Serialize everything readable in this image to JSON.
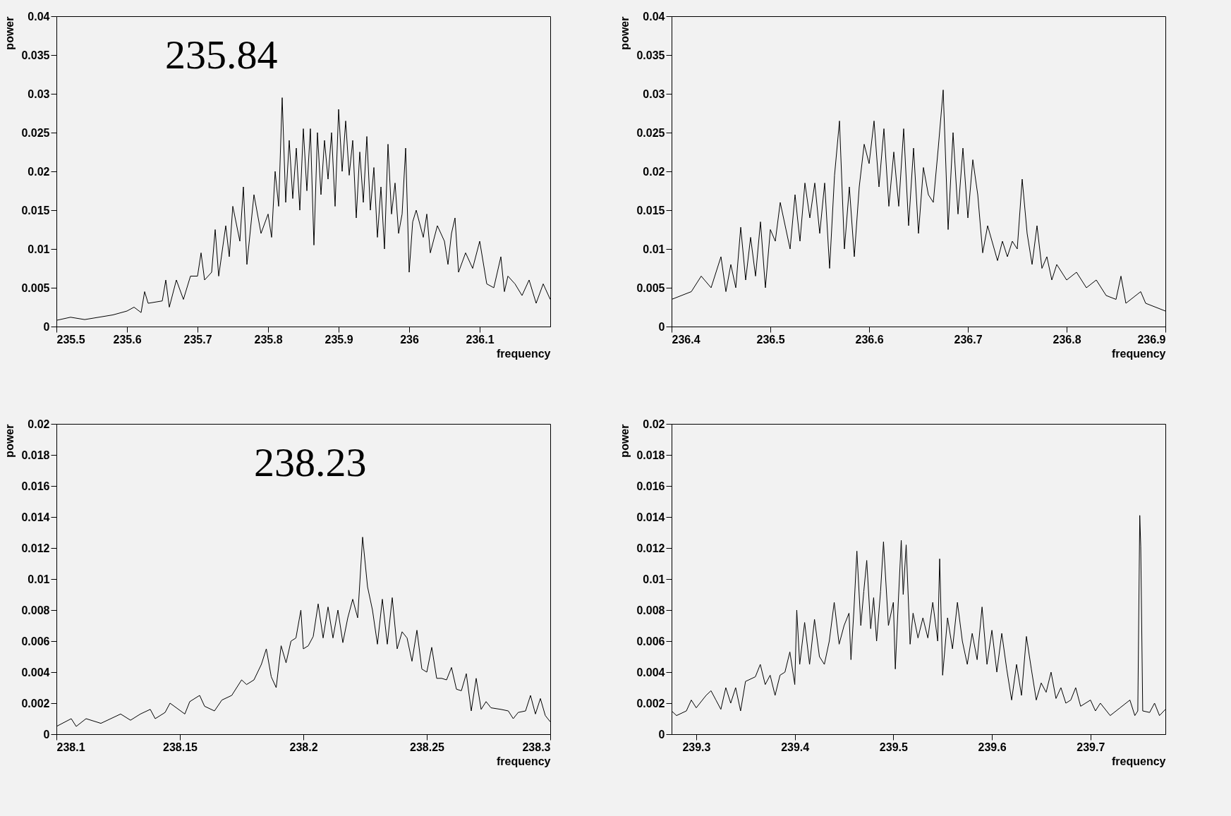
{
  "chart_data": [
    {
      "type": "line",
      "xlabel": "frequency",
      "ylabel": "power",
      "annotations": [
        "235.84"
      ],
      "xlim": [
        235.5,
        236.2
      ],
      "xticks": [
        235.5,
        235.6,
        235.7,
        235.8,
        235.9,
        236,
        236.1
      ],
      "ylim": [
        0,
        0.04
      ],
      "yticks": [
        0,
        0.005,
        0.01,
        0.015,
        0.02,
        0.025,
        0.03,
        0.035,
        0.04
      ],
      "series": [
        {
          "color": "#000000",
          "x": [
            235.5,
            235.52,
            235.54,
            235.56,
            235.58,
            235.6,
            235.61,
            235.62,
            235.625,
            235.63,
            235.65,
            235.655,
            235.66,
            235.67,
            235.68,
            235.69,
            235.7,
            235.705,
            235.71,
            235.72,
            235.725,
            235.73,
            235.74,
            235.745,
            235.75,
            235.76,
            235.765,
            235.77,
            235.78,
            235.79,
            235.8,
            235.805,
            235.81,
            235.815,
            235.82,
            235.825,
            235.83,
            235.835,
            235.84,
            235.845,
            235.85,
            235.855,
            235.86,
            235.865,
            235.87,
            235.875,
            235.88,
            235.885,
            235.89,
            235.895,
            235.9,
            235.905,
            235.91,
            235.915,
            235.92,
            235.925,
            235.93,
            235.935,
            235.94,
            235.945,
            235.95,
            235.955,
            235.96,
            235.965,
            235.97,
            235.975,
            235.98,
            235.985,
            235.99,
            235.995,
            236,
            236.005,
            236.01,
            236.02,
            236.025,
            236.03,
            236.04,
            236.05,
            236.055,
            236.06,
            236.065,
            236.07,
            236.08,
            236.09,
            236.1,
            236.11,
            236.12,
            236.13,
            236.135,
            236.14,
            236.15,
            236.16,
            236.17,
            236.18,
            236.19,
            236.2
          ],
          "values": [
            0.0008,
            0.0012,
            0.0009,
            0.0012,
            0.0015,
            0.002,
            0.0025,
            0.0018,
            0.0045,
            0.003,
            0.0033,
            0.006,
            0.0025,
            0.006,
            0.0035,
            0.0065,
            0.0065,
            0.0095,
            0.006,
            0.007,
            0.0125,
            0.0065,
            0.013,
            0.009,
            0.0155,
            0.011,
            0.018,
            0.008,
            0.017,
            0.012,
            0.0145,
            0.0115,
            0.02,
            0.0155,
            0.0295,
            0.016,
            0.024,
            0.0165,
            0.023,
            0.015,
            0.0255,
            0.0175,
            0.0255,
            0.0105,
            0.025,
            0.017,
            0.024,
            0.019,
            0.025,
            0.0155,
            0.028,
            0.02,
            0.0265,
            0.0195,
            0.024,
            0.014,
            0.0225,
            0.016,
            0.0245,
            0.015,
            0.0205,
            0.0115,
            0.018,
            0.01,
            0.0235,
            0.0145,
            0.0185,
            0.012,
            0.0145,
            0.023,
            0.007,
            0.0135,
            0.015,
            0.0115,
            0.0145,
            0.0095,
            0.013,
            0.011,
            0.008,
            0.012,
            0.014,
            0.007,
            0.0095,
            0.0075,
            0.011,
            0.0055,
            0.005,
            0.009,
            0.0045,
            0.0065,
            0.0055,
            0.004,
            0.006,
            0.003,
            0.0055,
            0.0035
          ]
        }
      ]
    },
    {
      "type": "line",
      "xlabel": "frequency",
      "ylabel": "power",
      "xlim": [
        236.4,
        236.9
      ],
      "xticks": [
        236.4,
        236.5,
        236.6,
        236.7,
        236.8,
        236.9
      ],
      "ylim": [
        0,
        0.04
      ],
      "yticks": [
        0,
        0.005,
        0.01,
        0.015,
        0.02,
        0.025,
        0.03,
        0.035,
        0.04
      ],
      "series": [
        {
          "color": "#000000",
          "x": [
            236.4,
            236.41,
            236.42,
            236.43,
            236.44,
            236.445,
            236.45,
            236.455,
            236.46,
            236.465,
            236.47,
            236.475,
            236.48,
            236.485,
            236.49,
            236.495,
            236.5,
            236.505,
            236.51,
            236.52,
            236.525,
            236.53,
            236.535,
            236.54,
            236.545,
            236.55,
            236.555,
            236.56,
            236.565,
            236.57,
            236.575,
            236.58,
            236.585,
            236.59,
            236.595,
            236.6,
            236.605,
            236.61,
            236.615,
            236.62,
            236.625,
            236.63,
            236.635,
            236.64,
            236.645,
            236.65,
            236.655,
            236.66,
            236.665,
            236.67,
            236.675,
            236.68,
            236.685,
            236.69,
            236.695,
            236.7,
            236.705,
            236.71,
            236.715,
            236.72,
            236.73,
            236.735,
            236.74,
            236.745,
            236.75,
            236.755,
            236.76,
            236.765,
            236.77,
            236.775,
            236.78,
            236.785,
            236.79,
            236.8,
            236.81,
            236.82,
            236.83,
            236.84,
            236.85,
            236.855,
            236.86,
            236.87,
            236.875,
            236.88,
            236.89,
            236.9
          ],
          "values": [
            0.0035,
            0.004,
            0.0045,
            0.0065,
            0.005,
            0.007,
            0.009,
            0.0045,
            0.008,
            0.005,
            0.0128,
            0.006,
            0.0115,
            0.0065,
            0.0135,
            0.005,
            0.0125,
            0.011,
            0.016,
            0.01,
            0.017,
            0.011,
            0.0185,
            0.014,
            0.0185,
            0.012,
            0.0185,
            0.0075,
            0.0195,
            0.0265,
            0.01,
            0.018,
            0.009,
            0.018,
            0.0235,
            0.021,
            0.0265,
            0.018,
            0.0255,
            0.0155,
            0.0225,
            0.0155,
            0.0255,
            0.013,
            0.023,
            0.012,
            0.0205,
            0.017,
            0.016,
            0.023,
            0.0305,
            0.0125,
            0.025,
            0.0145,
            0.023,
            0.014,
            0.0215,
            0.017,
            0.0095,
            0.013,
            0.0085,
            0.011,
            0.009,
            0.011,
            0.01,
            0.019,
            0.012,
            0.008,
            0.013,
            0.0075,
            0.009,
            0.006,
            0.008,
            0.006,
            0.007,
            0.005,
            0.006,
            0.004,
            0.0035,
            0.0065,
            0.003,
            0.004,
            0.0045,
            0.003,
            0.0025,
            0.002
          ]
        }
      ]
    },
    {
      "type": "line",
      "xlabel": "frequency",
      "ylabel": "power",
      "annotations": [
        "238.23"
      ],
      "xlim": [
        238.1,
        238.3
      ],
      "xticks": [
        238.1,
        238.15,
        238.2,
        238.25,
        238.3
      ],
      "ylim": [
        0,
        0.02
      ],
      "yticks": [
        0,
        0.002,
        0.004,
        0.006,
        0.008,
        0.01,
        0.012,
        0.014,
        0.016,
        0.018,
        0.02
      ],
      "series": [
        {
          "color": "#000000",
          "x": [
            238.1,
            238.106,
            238.108,
            238.112,
            238.118,
            238.122,
            238.126,
            238.13,
            238.134,
            238.138,
            238.14,
            238.144,
            238.146,
            238.152,
            238.154,
            238.158,
            238.16,
            238.164,
            238.167,
            238.171,
            238.175,
            238.177,
            238.18,
            238.183,
            238.185,
            238.187,
            238.189,
            238.191,
            238.193,
            238.195,
            238.197,
            238.199,
            238.2,
            238.202,
            238.204,
            238.206,
            238.208,
            238.21,
            238.212,
            238.214,
            238.216,
            238.218,
            238.22,
            238.222,
            238.224,
            238.226,
            238.228,
            238.23,
            238.232,
            238.234,
            238.236,
            238.238,
            238.24,
            238.242,
            238.244,
            238.246,
            238.248,
            238.25,
            238.252,
            238.254,
            238.256,
            238.258,
            238.26,
            238.262,
            238.264,
            238.266,
            238.268,
            238.27,
            238.272,
            238.274,
            238.276,
            238.28,
            238.283,
            238.285,
            238.287,
            238.29,
            238.292,
            238.294,
            238.296,
            238.298,
            238.3
          ],
          "values": [
            0.0005,
            0.001,
            0.0005,
            0.001,
            0.0007,
            0.001,
            0.0013,
            0.0009,
            0.0013,
            0.0016,
            0.001,
            0.0014,
            0.002,
            0.0013,
            0.0021,
            0.0025,
            0.0018,
            0.0015,
            0.0022,
            0.0025,
            0.0035,
            0.0032,
            0.0035,
            0.0045,
            0.0055,
            0.0037,
            0.003,
            0.0057,
            0.0046,
            0.006,
            0.0062,
            0.008,
            0.0055,
            0.0057,
            0.0063,
            0.0084,
            0.0062,
            0.0082,
            0.0062,
            0.008,
            0.0059,
            0.0075,
            0.0087,
            0.0075,
            0.0127,
            0.0095,
            0.008,
            0.0058,
            0.0087,
            0.0058,
            0.0088,
            0.0055,
            0.0066,
            0.0062,
            0.0047,
            0.0067,
            0.0042,
            0.004,
            0.0056,
            0.0036,
            0.0036,
            0.0035,
            0.0043,
            0.0029,
            0.0028,
            0.0039,
            0.0015,
            0.0036,
            0.0016,
            0.0021,
            0.0017,
            0.0016,
            0.0015,
            0.001,
            0.0014,
            0.0015,
            0.0025,
            0.0013,
            0.0023,
            0.0012,
            0.0008
          ]
        }
      ]
    },
    {
      "type": "line",
      "xlabel": "frequency",
      "ylabel": "power",
      "xlim": [
        239.275,
        239.776
      ],
      "xticks": [
        239.3,
        239.4,
        239.5,
        239.6,
        239.7
      ],
      "ylim": [
        0,
        0.02
      ],
      "yticks": [
        0,
        0.002,
        0.004,
        0.006,
        0.008,
        0.01,
        0.012,
        0.014,
        0.016,
        0.018,
        0.02
      ],
      "series": [
        {
          "color": "#000000",
          "x": [
            239.275,
            239.28,
            239.29,
            239.295,
            239.3,
            239.31,
            239.315,
            239.32,
            239.325,
            239.33,
            239.335,
            239.34,
            239.345,
            239.35,
            239.36,
            239.365,
            239.37,
            239.375,
            239.38,
            239.385,
            239.39,
            239.395,
            239.4,
            239.402,
            239.405,
            239.41,
            239.415,
            239.42,
            239.425,
            239.43,
            239.435,
            239.44,
            239.445,
            239.45,
            239.455,
            239.457,
            239.46,
            239.463,
            239.467,
            239.47,
            239.473,
            239.477,
            239.48,
            239.483,
            239.487,
            239.49,
            239.495,
            239.5,
            239.502,
            239.505,
            239.508,
            239.51,
            239.513,
            239.517,
            239.52,
            239.525,
            239.53,
            239.535,
            239.54,
            239.545,
            239.547,
            239.55,
            239.555,
            239.56,
            239.565,
            239.57,
            239.575,
            239.58,
            239.585,
            239.59,
            239.595,
            239.6,
            239.605,
            239.61,
            239.615,
            239.62,
            239.625,
            239.63,
            239.635,
            239.64,
            239.645,
            239.65,
            239.655,
            239.66,
            239.665,
            239.67,
            239.675,
            239.68,
            239.685,
            239.69,
            239.7,
            239.705,
            239.71,
            239.72,
            239.73,
            239.74,
            239.745,
            239.748,
            239.75,
            239.751,
            239.753,
            239.76,
            239.765,
            239.77,
            239.776
          ],
          "values": [
            0.0015,
            0.0012,
            0.0015,
            0.0022,
            0.0017,
            0.0025,
            0.0028,
            0.0022,
            0.0016,
            0.003,
            0.002,
            0.003,
            0.0015,
            0.0034,
            0.0037,
            0.0045,
            0.0032,
            0.0038,
            0.0025,
            0.0038,
            0.004,
            0.0053,
            0.0032,
            0.008,
            0.0045,
            0.0072,
            0.0045,
            0.0074,
            0.005,
            0.0045,
            0.006,
            0.0085,
            0.0058,
            0.007,
            0.0078,
            0.0048,
            0.008,
            0.0118,
            0.007,
            0.0092,
            0.0112,
            0.0068,
            0.0088,
            0.006,
            0.0092,
            0.0124,
            0.007,
            0.0085,
            0.0042,
            0.0085,
            0.0125,
            0.009,
            0.0122,
            0.0058,
            0.0078,
            0.0062,
            0.0075,
            0.0062,
            0.0085,
            0.006,
            0.0113,
            0.0038,
            0.0075,
            0.0055,
            0.0085,
            0.006,
            0.0045,
            0.0065,
            0.0048,
            0.0082,
            0.0045,
            0.0067,
            0.004,
            0.0065,
            0.0042,
            0.0022,
            0.0045,
            0.0025,
            0.0063,
            0.0042,
            0.0022,
            0.0033,
            0.0027,
            0.004,
            0.0023,
            0.003,
            0.002,
            0.0022,
            0.003,
            0.0018,
            0.0022,
            0.0015,
            0.002,
            0.0012,
            0.0017,
            0.0022,
            0.0012,
            0.0015,
            0.0141,
            0.0121,
            0.0015,
            0.0014,
            0.002,
            0.0012,
            0.0016
          ]
        }
      ]
    }
  ]
}
